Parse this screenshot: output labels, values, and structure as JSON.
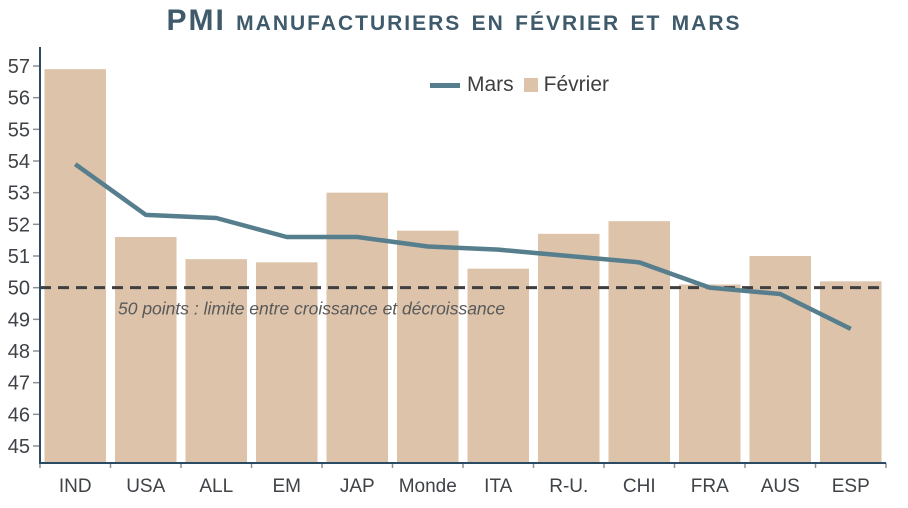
{
  "title": "PMI manufacturiers en février et mars",
  "legend": {
    "mars_label": "Mars",
    "fevrier_label": "Février"
  },
  "annotation": "50 points : limite entre croissance et décroissance",
  "colors": {
    "bar_fill": "#DCC3AA",
    "line_stroke": "#567E8C",
    "title_text": "#3E5A6B",
    "axis_line": "#2B4A63",
    "tick_text": "#3F4347",
    "tick_mark": "#8A9199",
    "dashed_line": "#3F3F3F",
    "annotation_text": "#595959",
    "background": "#FFFFFF"
  },
  "chart_data": {
    "type": "bar",
    "subtype": "combo-bar-line",
    "title": "PMI manufacturiers en février et mars",
    "categories": [
      "IND",
      "USA",
      "ALL",
      "EM",
      "JAP",
      "Monde",
      "ITA",
      "R-U.",
      "CHI",
      "FRA",
      "AUS",
      "ESP"
    ],
    "series": [
      {
        "name": "Mars",
        "type": "line",
        "values": [
          53.9,
          52.3,
          52.2,
          51.6,
          51.6,
          51.3,
          51.2,
          51.0,
          50.8,
          50.0,
          49.8,
          48.7
        ]
      },
      {
        "name": "Février",
        "type": "bar",
        "values": [
          56.9,
          51.6,
          50.9,
          50.8,
          53.0,
          51.8,
          50.6,
          51.7,
          52.1,
          50.1,
          51.0,
          50.2
        ]
      }
    ],
    "xlabel": "",
    "ylabel": "",
    "ylim": [
      45,
      57
    ],
    "yticks": [
      45,
      46,
      47,
      48,
      49,
      50,
      51,
      52,
      53,
      54,
      55,
      56,
      57
    ],
    "grid": false,
    "legend_position": "top-center",
    "reference_line": {
      "value": 50,
      "style": "dashed",
      "label": "50 points : limite entre croissance et décroissance"
    }
  }
}
